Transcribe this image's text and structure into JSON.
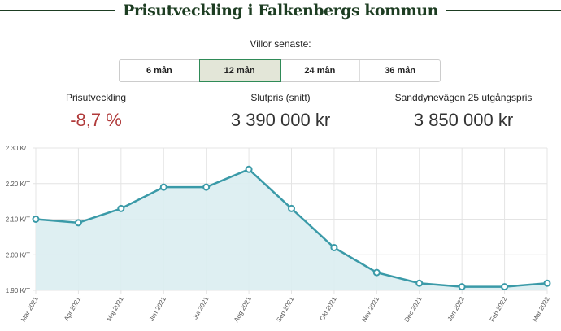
{
  "title": "Prisutveckling i Falkenbergs kommun",
  "subtitle": "Villor senaste:",
  "tabs": [
    {
      "label": "6 mån"
    },
    {
      "label": "12 mån",
      "active": true
    },
    {
      "label": "24 mån"
    },
    {
      "label": "36 mån"
    }
  ],
  "stats": [
    {
      "label": "Prisutveckling",
      "value": "-8,7 %",
      "color": "#b03a3a"
    },
    {
      "label": "Slutpris (snitt)",
      "value": "3 390 000 kr",
      "color": "#333"
    },
    {
      "label": "Sanddynevägen 25 utgångspris",
      "value": "3 850 000 kr",
      "color": "#333"
    }
  ],
  "chart_data": {
    "type": "area",
    "categories": [
      "Mar 2021",
      "Apr 2021",
      "Maj 2021",
      "Jun 2021",
      "Jul 2021",
      "Aug 2021",
      "Sep 2021",
      "Okt 2021",
      "Nov 2021",
      "Dec 2021",
      "Jan 2022",
      "Feb 2022",
      "Mar 2022"
    ],
    "values": [
      2.1,
      2.09,
      2.13,
      2.19,
      2.19,
      2.24,
      2.13,
      2.02,
      1.95,
      1.92,
      1.91,
      1.91,
      1.92
    ],
    "yticks": [
      "1.90 K/T",
      "2.00 K/T",
      "2.10 K/T",
      "2.20 K/T",
      "2.30 K/T"
    ],
    "ylim": [
      1.9,
      2.3
    ],
    "grid": true,
    "line_color": "#3a9aa8",
    "fill_color": "#daedf1"
  }
}
